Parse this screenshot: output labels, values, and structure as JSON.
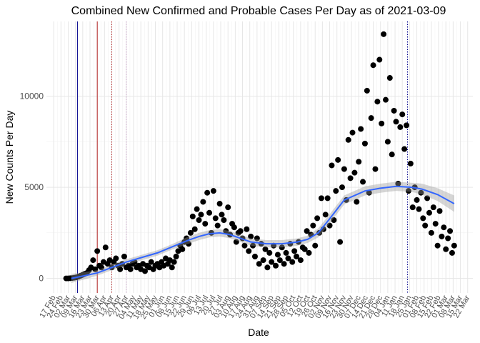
{
  "chart_data": {
    "type": "scatter",
    "title": "Combined New Confirmed and Probable Cases Per Day as of 2021-03-09",
    "x_label": "Date",
    "y_label": "New Counts Per Day",
    "color": "#000000",
    "x": [
      12,
      14,
      16,
      18,
      20,
      22,
      24,
      26,
      28,
      30,
      32,
      34,
      36,
      38,
      40,
      42,
      44,
      46,
      48,
      50,
      52,
      54,
      56,
      58,
      60,
      62,
      64,
      66,
      68,
      70,
      72,
      74,
      76,
      78,
      80,
      82,
      84,
      86,
      88,
      90,
      92,
      94,
      96,
      98,
      100,
      102,
      104,
      106,
      108,
      110,
      112,
      114,
      116,
      118,
      120,
      122,
      124,
      126,
      128,
      130,
      132,
      134,
      136,
      138,
      140,
      142,
      144,
      146,
      148,
      150,
      152,
      154,
      156,
      158,
      160,
      162,
      164,
      166,
      168,
      170,
      172,
      174,
      176,
      178,
      180,
      182,
      184,
      186,
      188,
      190,
      192,
      194,
      196,
      198,
      200,
      202,
      204,
      206,
      208,
      210,
      212,
      214,
      216,
      218,
      220,
      222,
      224,
      226,
      228,
      230,
      232,
      234,
      236,
      238,
      240,
      242,
      244,
      246,
      248,
      250,
      252,
      254,
      256,
      258,
      260,
      262,
      264,
      266,
      268,
      270,
      272,
      274,
      276,
      278,
      280,
      282,
      284,
      286,
      288,
      290,
      292,
      294,
      296,
      298,
      300,
      302,
      304,
      306,
      308,
      310,
      312,
      314,
      316,
      318,
      320,
      322,
      324,
      326,
      328,
      330,
      332,
      334,
      336,
      338,
      340,
      342,
      344,
      346,
      348,
      350,
      352,
      354,
      356,
      358,
      360,
      362,
      364,
      366,
      368,
      370,
      372,
      374,
      376,
      378,
      380,
      382,
      384,
      386
    ],
    "values": [
      0,
      0,
      10,
      20,
      40,
      60,
      100,
      150,
      200,
      250,
      300,
      450,
      600,
      1000,
      500,
      1500,
      700,
      600,
      900,
      1700,
      800,
      1000,
      600,
      900,
      1100,
      700,
      500,
      800,
      1200,
      600,
      700,
      500,
      800,
      900,
      600,
      700,
      500,
      800,
      400,
      700,
      600,
      900,
      500,
      700,
      800,
      600,
      900,
      700,
      1100,
      800,
      1000,
      600,
      900,
      1200,
      1500,
      1800,
      1600,
      2000,
      2200,
      1900,
      2500,
      3400,
      2700,
      3800,
      3200,
      3500,
      4200,
      3000,
      4700,
      3600,
      2500,
      4800,
      3300,
      2900,
      4100,
      3500,
      3200,
      2600,
      3900,
      2400,
      3000,
      2800,
      2000,
      2500,
      2600,
      2200,
      1800,
      2700,
      1500,
      2300,
      1800,
      1200,
      2200,
      800,
      1900,
      1000,
      1600,
      600,
      1400,
      900,
      1800,
      700,
      1300,
      1000,
      1700,
      800,
      1400,
      1100,
      1900,
      900,
      1500,
      1200,
      2000,
      1000,
      1700,
      1600,
      2600,
      1400,
      2400,
      2900,
      1800,
      3300,
      2500,
      4400,
      2700,
      3500,
      4400,
      2900,
      6200,
      3200,
      4800,
      6500,
      2000,
      5000,
      6000,
      4300,
      7600,
      5500,
      8000,
      5800,
      4200,
      6400,
      8200,
      5300,
      7400,
      10300,
      4700,
      8800,
      11700,
      6000,
      9700,
      12000,
      8500,
      13400,
      9800,
      7500,
      11000,
      6800,
      9200,
      8600,
      5200,
      8300,
      9000,
      7100,
      8400,
      4800,
      6300,
      3900,
      5000,
      4300,
      3800,
      4700,
      3300,
      2900,
      4400,
      3600,
      2500,
      3900,
      3000,
      1800,
      3700,
      2300,
      2800,
      1600,
      2200,
      2600,
      1400,
      1800
    ],
    "smooth": {
      "color": "#3366ff",
      "x": [
        17,
        30,
        42,
        56,
        70,
        85,
        100,
        115,
        130,
        140,
        150,
        160,
        170,
        180,
        190,
        205,
        220,
        235,
        245,
        255,
        265,
        280,
        300,
        315,
        330,
        345,
        355,
        370,
        386
      ],
      "values": [
        0,
        150,
        300,
        600,
        900,
        1150,
        1400,
        1750,
        2100,
        2300,
        2450,
        2500,
        2400,
        2200,
        2000,
        1900,
        1900,
        2000,
        2150,
        2500,
        3200,
        4300,
        4800,
        4950,
        5050,
        5000,
        4900,
        4600,
        4100
      ],
      "lower": [
        -250,
        -50,
        150,
        450,
        750,
        1000,
        1250,
        1600,
        1900,
        2100,
        2250,
        2300,
        2200,
        2000,
        1800,
        1700,
        1700,
        1800,
        1950,
        2250,
        2950,
        4050,
        4550,
        4700,
        4800,
        4750,
        4600,
        4250,
        3650
      ],
      "upper": [
        250,
        350,
        450,
        750,
        1050,
        1300,
        1550,
        1900,
        2300,
        2500,
        2650,
        2700,
        2600,
        2400,
        2200,
        2100,
        2100,
        2200,
        2350,
        2750,
        3450,
        4550,
        5050,
        5200,
        5300,
        5250,
        5200,
        4950,
        4550
      ]
    },
    "vlines": [
      {
        "x": 23,
        "color": "#00008b",
        "style": "solid"
      },
      {
        "x": 42,
        "color": "#b22222",
        "style": "solid"
      },
      {
        "x": 56,
        "color": "#b22222",
        "style": "dotted"
      },
      {
        "x": 70,
        "color": "#c8a2c8",
        "style": "dotted"
      },
      {
        "x": 341,
        "color": "#00008b",
        "style": "dotted"
      }
    ],
    "xlim": [
      -7,
      404
    ],
    "ylim": [
      -800,
      14100
    ],
    "yticks": [
      0,
      5000,
      10000
    ],
    "xticks": [
      {
        "value": 0,
        "label": "17 Feb"
      },
      {
        "value": 7,
        "label": "24 Feb"
      },
      {
        "value": 14,
        "label": "02 Mar"
      },
      {
        "value": 21,
        "label": "09 Mar"
      },
      {
        "value": 28,
        "label": "16 Mar"
      },
      {
        "value": 35,
        "label": "23 Mar"
      },
      {
        "value": 42,
        "label": "30 Mar"
      },
      {
        "value": 49,
        "label": "06 Apr"
      },
      {
        "value": 56,
        "label": "13 Apr"
      },
      {
        "value": 63,
        "label": "20 Apr"
      },
      {
        "value": 70,
        "label": "27 Apr"
      },
      {
        "value": 77,
        "label": "04 May"
      },
      {
        "value": 84,
        "label": "11 May"
      },
      {
        "value": 91,
        "label": "18 May"
      },
      {
        "value": 98,
        "label": "25 May"
      },
      {
        "value": 105,
        "label": "01 Jun"
      },
      {
        "value": 112,
        "label": "08 Jun"
      },
      {
        "value": 119,
        "label": "15 Jun"
      },
      {
        "value": 126,
        "label": "22 Jun"
      },
      {
        "value": 133,
        "label": "29 Jun"
      },
      {
        "value": 140,
        "label": "06 Jul"
      },
      {
        "value": 147,
        "label": "13 Jul"
      },
      {
        "value": 154,
        "label": "20 Jul"
      },
      {
        "value": 161,
        "label": "27 Jul"
      },
      {
        "value": 168,
        "label": "03 Aug"
      },
      {
        "value": 175,
        "label": "10 Aug"
      },
      {
        "value": 182,
        "label": "17 Aug"
      },
      {
        "value": 189,
        "label": "24 Aug"
      },
      {
        "value": 196,
        "label": "31 Aug"
      },
      {
        "value": 203,
        "label": "07 Sep"
      },
      {
        "value": 210,
        "label": "14 Sep"
      },
      {
        "value": 217,
        "label": "21 Sep"
      },
      {
        "value": 224,
        "label": "28 Sep"
      },
      {
        "value": 231,
        "label": "05 Oct"
      },
      {
        "value": 238,
        "label": "12 Oct"
      },
      {
        "value": 245,
        "label": "19 Oct"
      },
      {
        "value": 252,
        "label": "26 Oct"
      },
      {
        "value": 259,
        "label": "02 Nov"
      },
      {
        "value": 266,
        "label": "09 Nov"
      },
      {
        "value": 273,
        "label": "16 Nov"
      },
      {
        "value": 280,
        "label": "23 Nov"
      },
      {
        "value": 287,
        "label": "30 Nov"
      },
      {
        "value": 294,
        "label": "07 Dec"
      },
      {
        "value": 301,
        "label": "14 Dec"
      },
      {
        "value": 308,
        "label": "21 Dec"
      },
      {
        "value": 315,
        "label": "28 Dec"
      },
      {
        "value": 322,
        "label": "04 Jan"
      },
      {
        "value": 329,
        "label": "11 Jan"
      },
      {
        "value": 336,
        "label": "18 Jan"
      },
      {
        "value": 343,
        "label": "25 Jan"
      },
      {
        "value": 350,
        "label": "01 Feb"
      },
      {
        "value": 357,
        "label": "08 Feb"
      },
      {
        "value": 364,
        "label": "15 Feb"
      },
      {
        "value": 371,
        "label": "22 Feb"
      },
      {
        "value": 378,
        "label": "01 Mar"
      },
      {
        "value": 385,
        "label": "08 Mar"
      },
      {
        "value": 392,
        "label": "15 Mar"
      },
      {
        "value": 399,
        "label": "22 Mar"
      }
    ],
    "grid": true
  }
}
